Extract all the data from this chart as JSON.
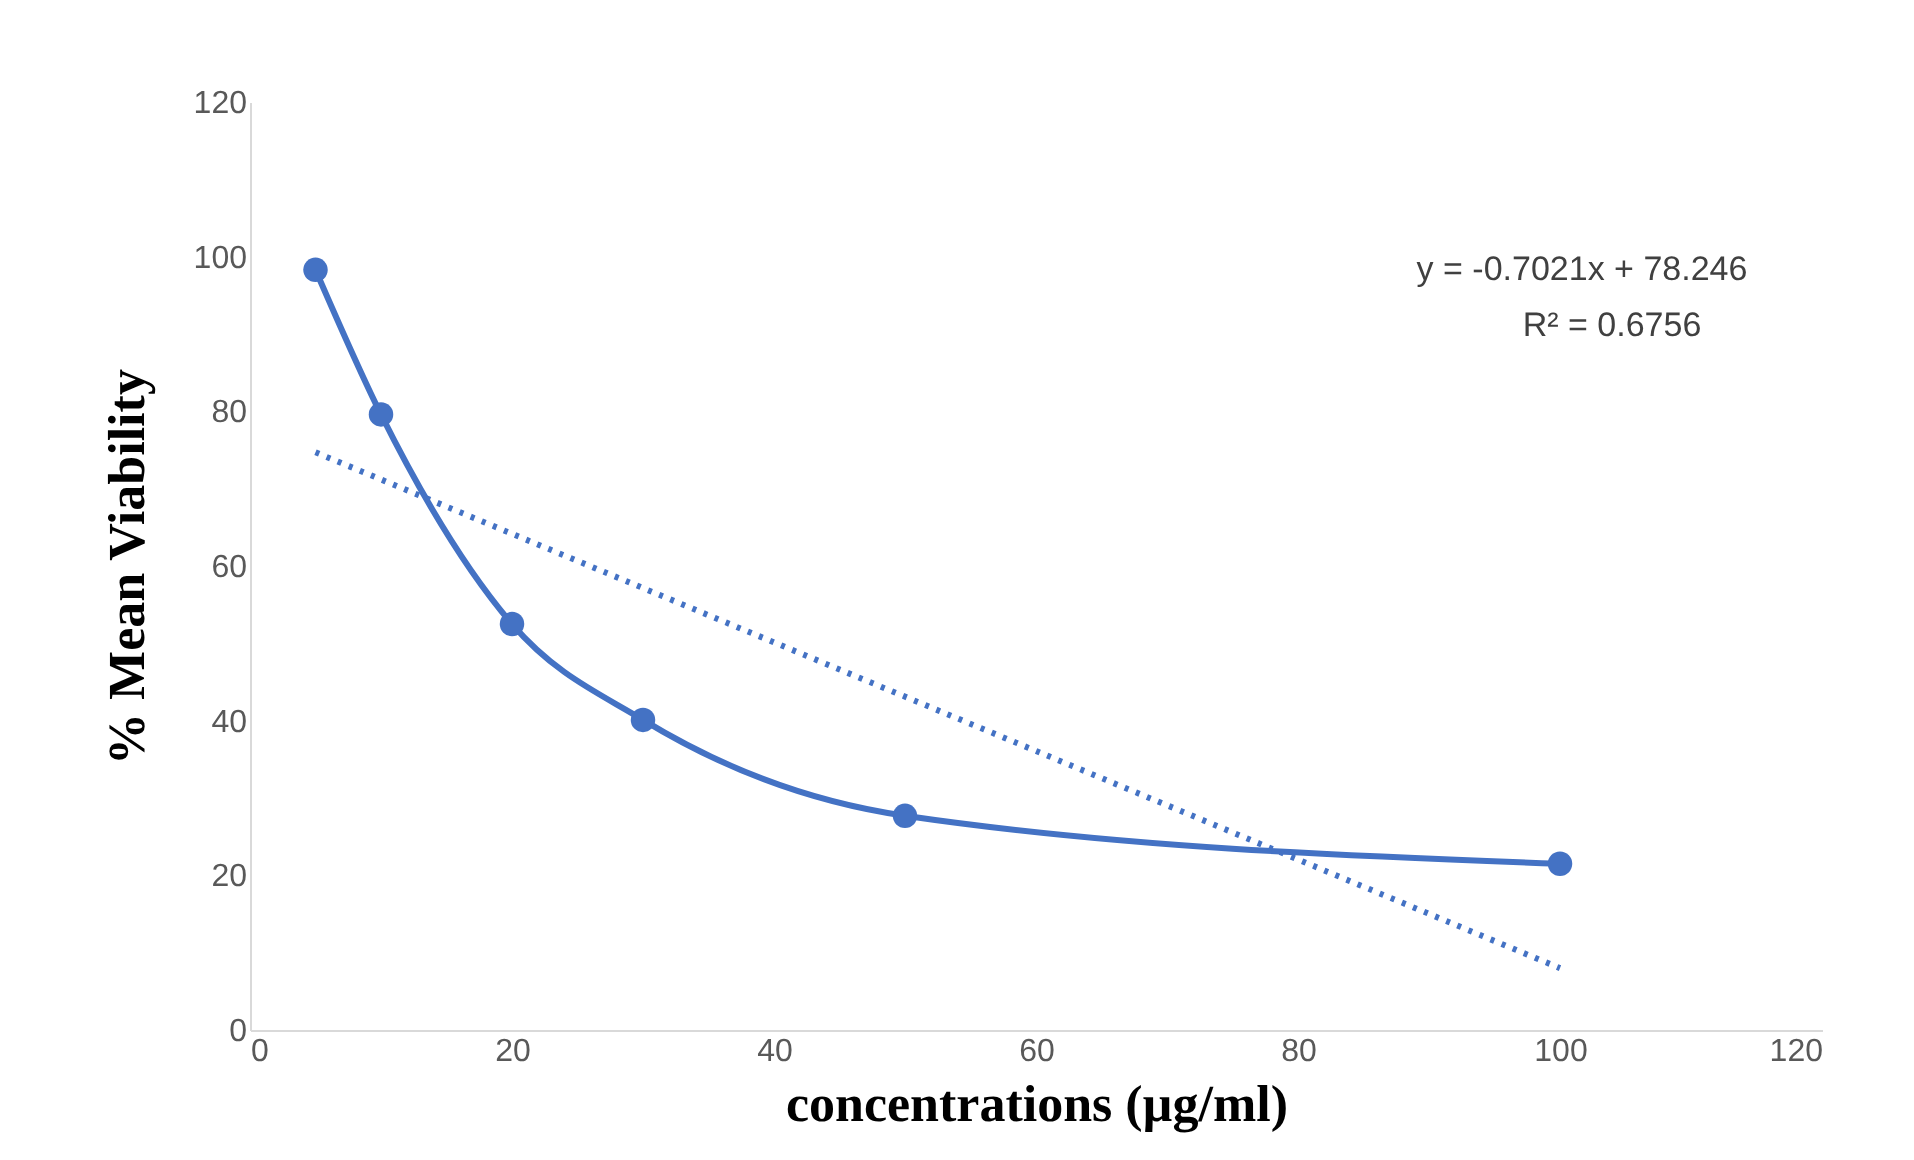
{
  "chart_data": {
    "type": "line",
    "xlabel": "concentrations (µg/ml)",
    "ylabel": "% Mean Viability",
    "xlim": [
      0,
      120
    ],
    "xticks": [
      0,
      20,
      40,
      60,
      80,
      100,
      120
    ],
    "ylim": [
      0,
      120
    ],
    "yticks": [
      0,
      20,
      40,
      60,
      80,
      100,
      120
    ],
    "grid": false,
    "series": [
      {
        "color": "#4472c4",
        "marker": "circle",
        "line_style": "solid",
        "x": [
          5,
          10,
          20,
          30,
          50,
          100
        ],
        "values": [
          98.3,
          79.6,
          52.5,
          40.1,
          27.7,
          21.5
        ]
      },
      {
        "type": "line",
        "color": "#4472c4",
        "marker": "none",
        "line_style": "dotted",
        "x": [
          5,
          100
        ],
        "values": [
          74.7,
          8.0
        ]
      }
    ],
    "annotations": [
      "y = -0.7021x + 78.246",
      "R² = 0.6756"
    ]
  }
}
